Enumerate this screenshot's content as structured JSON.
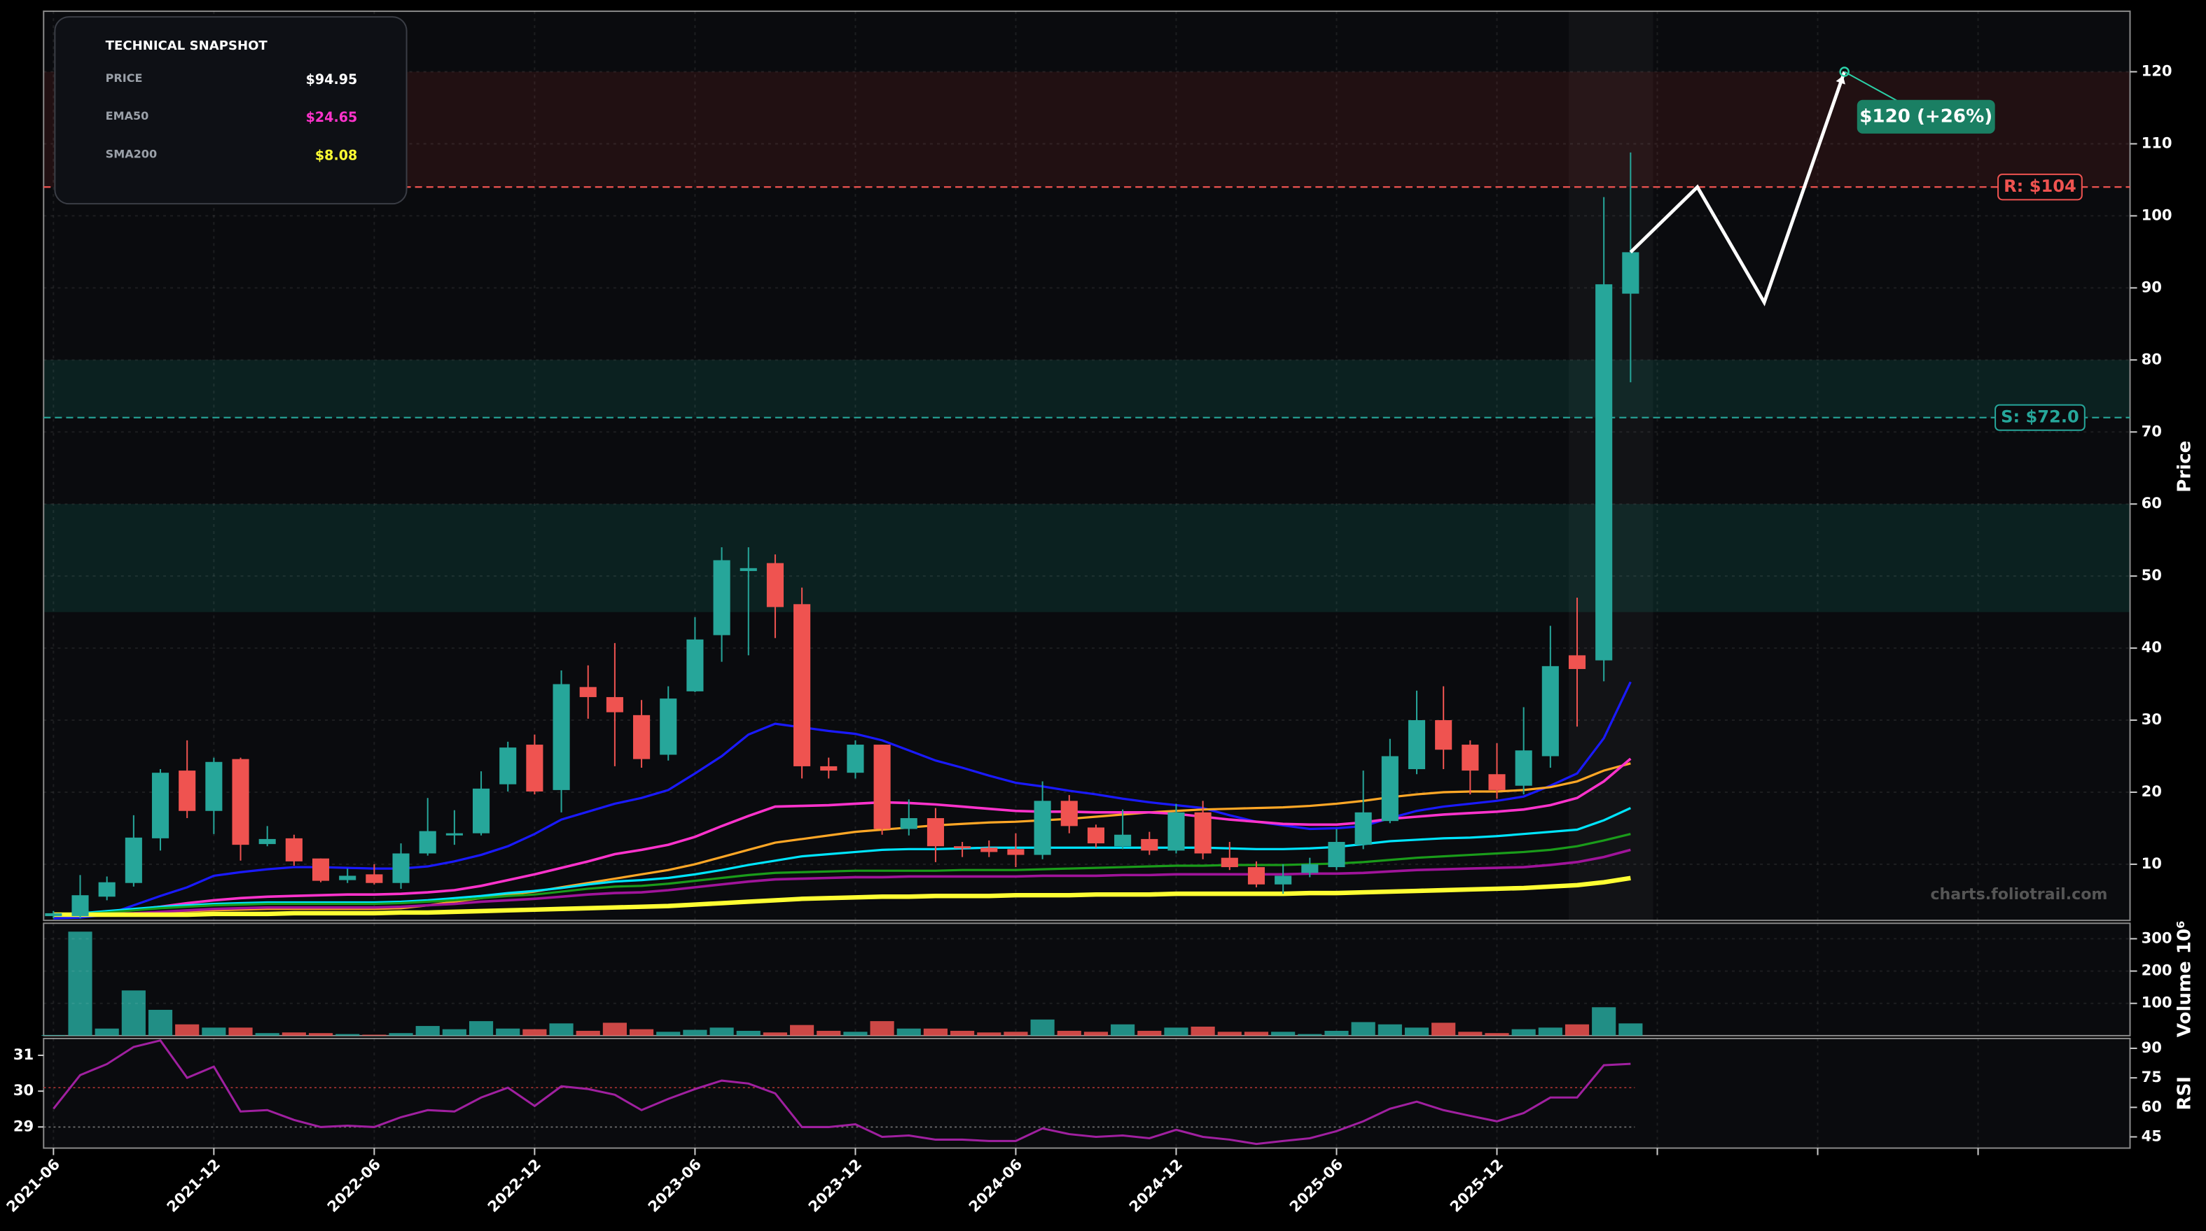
{
  "chart_data": {
    "type": "candlestick",
    "categories": [
      "2021-06",
      "2021-07",
      "2021-08",
      "2021-09",
      "2021-10",
      "2021-11",
      "2021-12",
      "2022-01",
      "2022-02",
      "2022-03",
      "2022-04",
      "2022-05",
      "2022-06",
      "2022-07",
      "2022-08",
      "2022-09",
      "2022-10",
      "2022-11",
      "2022-12",
      "2023-01",
      "2023-02",
      "2023-03",
      "2023-04",
      "2023-05",
      "2023-06",
      "2023-07",
      "2023-08",
      "2023-09",
      "2023-10",
      "2023-11",
      "2023-12",
      "2024-01",
      "2024-02",
      "2024-03",
      "2024-04",
      "2024-05",
      "2024-06",
      "2024-07",
      "2024-08",
      "2024-09",
      "2024-10",
      "2024-11",
      "2024-12",
      "2025-01",
      "2025-02",
      "2025-03",
      "2025-04",
      "2025-05",
      "2025-06",
      "2025-07",
      "2025-08",
      "2025-09",
      "2025-10",
      "2025-11",
      "2025-12",
      "2026-01",
      "2026-02",
      "2026-03",
      "2026-04",
      "2026-05"
    ],
    "xticks": [
      "2021-06",
      "2021-12",
      "2022-06",
      "2022-12",
      "2023-06",
      "2023-12",
      "2024-06",
      "2024-12",
      "2025-06",
      "2025-12",
      null,
      null,
      null
    ],
    "candles": {
      "open": [
        2.8,
        2.8,
        5.5,
        7.4,
        13.6,
        23,
        17.4,
        24.6,
        12.8,
        13.6,
        10.8,
        7.8,
        8.6,
        7.4,
        11.5,
        14,
        14.3,
        21.1,
        26.6,
        20.3,
        34.6,
        33.2,
        30.7,
        25.2,
        34,
        41.8,
        50.7,
        51.8,
        46.1,
        23.6,
        22.7,
        26.6,
        14.9,
        16.4,
        12.5,
        12.3,
        12.1,
        11.3,
        18.8,
        15.1,
        12.5,
        13.5,
        11.9,
        17.2,
        10.9,
        9.6,
        7.2,
        8.8,
        9.6,
        12.7,
        16,
        23.2,
        30,
        26.6,
        22.5,
        20.9,
        25,
        39,
        38.3,
        89.2
      ],
      "high": [
        3.5,
        8.5,
        8.3,
        16.8,
        23.2,
        27.2,
        24.8,
        24.8,
        15.3,
        14.1,
        10.8,
        9.4,
        10,
        12.9,
        19.2,
        17.5,
        22.9,
        27,
        28,
        36.9,
        37.6,
        40.7,
        32.8,
        34.7,
        44.3,
        54,
        54,
        53,
        48.4,
        24.8,
        27.2,
        26.6,
        19,
        17.8,
        13.1,
        13.3,
        14.3,
        21.5,
        19.6,
        15.5,
        17.6,
        14.5,
        18.4,
        18.8,
        13.1,
        10.4,
        10,
        10.9,
        14.9,
        23,
        27.4,
        34.1,
        34.7,
        27.2,
        26.8,
        31.8,
        43.1,
        47,
        102.6,
        108.8
      ],
      "low": [
        2.5,
        2.5,
        5,
        6.9,
        11.9,
        16.4,
        14.2,
        10.5,
        12.5,
        9.8,
        7.5,
        7.4,
        7.2,
        6.6,
        11.2,
        12.7,
        14,
        20.1,
        19.7,
        17.2,
        30.2,
        23.6,
        23.4,
        24.4,
        33.9,
        38.1,
        39,
        41.4,
        21.9,
        21.9,
        21.9,
        14.1,
        14,
        10.3,
        11,
        11,
        9.6,
        10.7,
        14.3,
        12.3,
        12.1,
        11.3,
        11.5,
        10.7,
        9.2,
        6.8,
        5.9,
        8.2,
        9.2,
        12.1,
        15.7,
        22.5,
        23.2,
        19.7,
        19.1,
        19.7,
        23.4,
        29.1,
        35.4,
        76.9
      ],
      "close": [
        3.2,
        5.7,
        7.5,
        13.7,
        22.7,
        17.4,
        24.2,
        12.7,
        13.5,
        10.4,
        7.7,
        8.4,
        7.4,
        11.5,
        14.6,
        14.3,
        20.5,
        26.2,
        20.1,
        35,
        33.2,
        31.1,
        24.6,
        33,
        41.2,
        52.2,
        51.1,
        45.7,
        23.6,
        23,
        26.6,
        14.9,
        16.4,
        12.5,
        12.3,
        11.7,
        11.3,
        18.8,
        15.3,
        12.9,
        14.1,
        11.9,
        17.2,
        11.5,
        9.6,
        7.2,
        8.4,
        10,
        13.1,
        17.2,
        25,
        30,
        25.9,
        23,
        20.3,
        25.8,
        37.5,
        37.1,
        90.5,
        94.95
      ]
    },
    "up_color": "#26a69a",
    "down_color": "#ef5350",
    "ylim": [
      2.2,
      128.4
    ],
    "yticks": [
      10,
      20,
      30,
      40,
      50,
      60,
      70,
      80,
      90,
      100,
      110,
      120
    ],
    "ylabel": "Price",
    "grid": true,
    "ma_lines": [
      {
        "color": "#1a1aff",
        "width": 1.6,
        "values": [
          2.5,
          2.6,
          3.0,
          4.3,
          5.6,
          6.8,
          8.4,
          8.9,
          9.3,
          9.6,
          9.6,
          9.5,
          9.4,
          9.4,
          9.7,
          10.4,
          11.3,
          12.5,
          14.2,
          16.2,
          17.3,
          18.4,
          19.2,
          20.3,
          22.6,
          25.0,
          28.0,
          29.5,
          29.0,
          28.5,
          28.1,
          27.2,
          25.8,
          24.4,
          23.4,
          22.3,
          21.3,
          20.8,
          20.2,
          19.7,
          19.1,
          18.6,
          18.2,
          17.8,
          16.8,
          15.9,
          15.4,
          14.9,
          15.0,
          15.3,
          16.4,
          17.4,
          18.0,
          18.4,
          18.8,
          19.4,
          20.9,
          22.6,
          27.5,
          35.3
        ]
      },
      {
        "color": "#ffa726",
        "width": 1.6,
        "values": [
          3.0,
          3.0,
          3.0,
          3.1,
          3.3,
          3.5,
          3.6,
          3.7,
          3.8,
          3.8,
          3.8,
          3.8,
          3.8,
          3.9,
          4.3,
          4.8,
          5.3,
          5.8,
          6.2,
          6.8,
          7.4,
          8.0,
          8.6,
          9.2,
          10.0,
          11.0,
          12.0,
          13.0,
          13.5,
          14.0,
          14.5,
          14.8,
          15.1,
          15.4,
          15.6,
          15.8,
          15.9,
          16.1,
          16.3,
          16.6,
          16.9,
          17.2,
          17.4,
          17.6,
          17.7,
          17.8,
          17.9,
          18.1,
          18.4,
          18.8,
          19.3,
          19.7,
          20.0,
          20.1,
          20.1,
          20.3,
          20.7,
          21.5,
          23.0,
          24.0
        ]
      },
      {
        "color": "#ff33cc",
        "width": 1.8,
        "values": [
          3.0,
          3.0,
          3.3,
          3.7,
          4.1,
          4.6,
          5.0,
          5.3,
          5.5,
          5.6,
          5.7,
          5.8,
          5.8,
          5.9,
          6.1,
          6.4,
          7.0,
          7.8,
          8.6,
          9.5,
          10.4,
          11.4,
          12.0,
          12.7,
          13.8,
          15.3,
          16.7,
          18.0,
          18.1,
          18.2,
          18.4,
          18.6,
          18.5,
          18.3,
          18.0,
          17.7,
          17.4,
          17.3,
          17.3,
          17.2,
          17.2,
          17.2,
          17.0,
          16.6,
          16.2,
          15.9,
          15.6,
          15.5,
          15.5,
          15.8,
          16.3,
          16.6,
          16.9,
          17.1,
          17.3,
          17.6,
          18.2,
          19.2,
          21.5,
          24.65
        ]
      },
      {
        "color": "#00e5ff",
        "width": 1.6,
        "values": [
          3.0,
          3.2,
          3.5,
          3.8,
          4.1,
          4.3,
          4.5,
          4.6,
          4.7,
          4.7,
          4.7,
          4.7,
          4.7,
          4.8,
          5.0,
          5.3,
          5.6,
          6.0,
          6.3,
          6.7,
          7.2,
          7.6,
          7.8,
          8.1,
          8.6,
          9.2,
          9.9,
          10.5,
          11.1,
          11.4,
          11.7,
          12.0,
          12.1,
          12.1,
          12.2,
          12.3,
          12.3,
          12.3,
          12.3,
          12.3,
          12.3,
          12.3,
          12.3,
          12.3,
          12.2,
          12.1,
          12.1,
          12.2,
          12.4,
          12.8,
          13.2,
          13.4,
          13.6,
          13.7,
          13.9,
          14.2,
          14.5,
          14.8,
          16.1,
          17.8
        ]
      },
      {
        "color": "#1a9c1a",
        "width": 1.6,
        "values": [
          3.0,
          3.1,
          3.3,
          3.6,
          3.9,
          4.1,
          4.3,
          4.4,
          4.5,
          4.5,
          4.5,
          4.5,
          4.5,
          4.6,
          4.8,
          5.0,
          5.3,
          5.6,
          5.8,
          6.2,
          6.6,
          6.9,
          7.0,
          7.3,
          7.7,
          8.1,
          8.5,
          8.8,
          8.9,
          9.0,
          9.1,
          9.1,
          9.1,
          9.1,
          9.2,
          9.2,
          9.2,
          9.3,
          9.4,
          9.5,
          9.6,
          9.7,
          9.8,
          9.8,
          9.9,
          9.9,
          9.9,
          10.0,
          10.1,
          10.3,
          10.6,
          10.9,
          11.1,
          11.3,
          11.5,
          11.7,
          12.0,
          12.5,
          13.3,
          14.2
        ]
      },
      {
        "color": "#a0149a",
        "width": 1.8,
        "values": [
          3.0,
          3.0,
          3.1,
          3.2,
          3.4,
          3.6,
          3.8,
          3.9,
          4.0,
          4.0,
          4.0,
          4.0,
          4.0,
          4.1,
          4.3,
          4.5,
          4.8,
          5.0,
          5.2,
          5.5,
          5.8,
          6.0,
          6.1,
          6.4,
          6.8,
          7.2,
          7.6,
          7.9,
          8.0,
          8.1,
          8.2,
          8.2,
          8.3,
          8.3,
          8.3,
          8.3,
          8.3,
          8.4,
          8.4,
          8.4,
          8.5,
          8.5,
          8.6,
          8.6,
          8.6,
          8.6,
          8.6,
          8.7,
          8.7,
          8.8,
          9.0,
          9.2,
          9.3,
          9.4,
          9.5,
          9.6,
          9.9,
          10.3,
          11.0,
          12.0
        ]
      },
      {
        "color": "#ffff33",
        "width": 3.2,
        "values": [
          3.0,
          3.0,
          3.0,
          3.0,
          3.0,
          3.0,
          3.1,
          3.1,
          3.1,
          3.2,
          3.2,
          3.2,
          3.2,
          3.3,
          3.3,
          3.4,
          3.5,
          3.6,
          3.7,
          3.8,
          3.9,
          4.0,
          4.1,
          4.2,
          4.4,
          4.6,
          4.8,
          5.0,
          5.2,
          5.3,
          5.4,
          5.5,
          5.5,
          5.6,
          5.6,
          5.6,
          5.7,
          5.7,
          5.7,
          5.8,
          5.8,
          5.8,
          5.9,
          5.9,
          5.9,
          5.9,
          5.9,
          6.0,
          6.0,
          6.1,
          6.2,
          6.3,
          6.4,
          6.5,
          6.6,
          6.7,
          6.9,
          7.1,
          7.5,
          8.08
        ]
      }
    ],
    "zones": [
      {
        "from": 104,
        "to": 120,
        "color": "#c0392b"
      },
      {
        "from": 72,
        "to": 80,
        "color": "#1abc9c"
      },
      {
        "from": 45,
        "to": 60,
        "color": "#1abc9c"
      }
    ],
    "resistance": {
      "value": 104,
      "label": "R: $104",
      "color": "#ef5350"
    },
    "support": {
      "value": 72,
      "label": "S: $72.0",
      "color": "#26a69a"
    },
    "forecast": {
      "values": [
        94.95,
        104,
        88,
        120
      ],
      "label": "$120 (+26%)",
      "color": "#1a7f63"
    },
    "watermark": "charts.foliotrail.com",
    "volume": {
      "values": [
        2,
        322,
        22,
        140,
        80,
        35,
        25,
        25,
        8,
        10,
        8,
        5,
        3,
        8,
        30,
        20,
        45,
        22,
        20,
        38,
        15,
        40,
        20,
        12,
        18,
        25,
        15,
        10,
        33,
        15,
        12,
        45,
        22,
        22,
        15,
        10,
        12,
        50,
        15,
        12,
        35,
        15,
        25,
        28,
        12,
        12,
        12,
        5,
        15,
        42,
        35,
        25,
        40,
        12,
        8,
        20,
        25,
        35,
        88,
        38
      ],
      "ylim": [
        0,
        348
      ],
      "yticks": [
        100,
        200,
        300
      ],
      "ylabel": "Volume",
      "scale_label": "10⁶"
    },
    "rsi": {
      "values": [
        59.3,
        76.4,
        82,
        90.7,
        94,
        75,
        80.7,
        57.9,
        58.6,
        53.6,
        50,
        50.7,
        50,
        55,
        58.6,
        57.9,
        65,
        70,
        60.7,
        70.7,
        69.3,
        66.4,
        58.6,
        64.3,
        69.3,
        73.6,
        72.1,
        67.1,
        50,
        50,
        51.4,
        45,
        45.7,
        43.6,
        43.6,
        42.9,
        42.9,
        49.3,
        46.4,
        45,
        45.7,
        44.3,
        48.6,
        45,
        43.6,
        41.4,
        42.9,
        44.3,
        47.9,
        52.9,
        59.3,
        62.9,
        58.6,
        55.7,
        52.9,
        57.1,
        65,
        65,
        81.4,
        82.1
      ],
      "color": "#a020a0",
      "ylim": [
        39.3,
        95
      ],
      "yticks": [
        45,
        60,
        75,
        90
      ],
      "ylabel": "RSI",
      "levels": [
        70,
        50
      ],
      "y2lim": [
        28.41,
        31.47
      ],
      "y2ticks": [
        29,
        30,
        31
      ]
    },
    "snapshot": {
      "title": "TECHNICAL SNAPSHOT",
      "rows": [
        {
          "label": "PRICE",
          "value": "$94.95",
          "color": "#ffffff"
        },
        {
          "label": "EMA50",
          "value": "$24.65",
          "color": "#ff33cc"
        },
        {
          "label": "SMA200",
          "value": "$8.08",
          "color": "#ffff33"
        }
      ]
    }
  }
}
